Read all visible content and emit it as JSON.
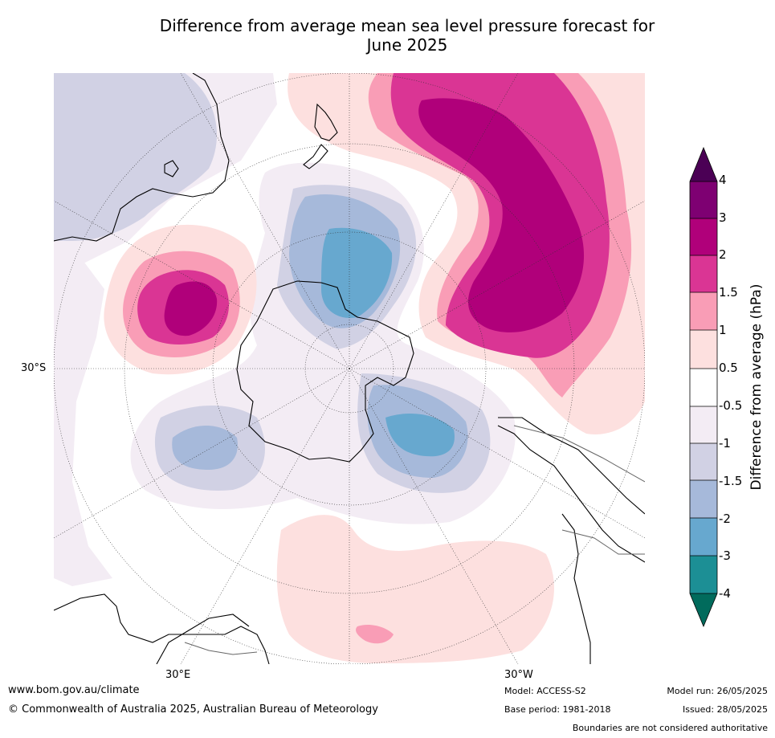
{
  "title_line1": "Difference from average mean sea level pressure forecast for",
  "title_line2": "June 2025",
  "map": {
    "lat_label": "30°S",
    "lon_labels": [
      "30°E",
      "30°W"
    ]
  },
  "colorbar": {
    "label": "Difference from average (hPa)",
    "ticks": [
      "4",
      "3",
      "2",
      "1.5",
      "1",
      "0.5",
      "-0.5",
      "-1",
      "-1.5",
      "-2",
      "-3",
      "-4"
    ],
    "colors": [
      "#4b0055",
      "#7e0072",
      "#b0007a",
      "#da3594",
      "#f99db6",
      "#fde0df",
      "#ffffff",
      "#f3ecf4",
      "#d1d1e4",
      "#a6b9da",
      "#67a8cf",
      "#1c8f95",
      "#016b5c"
    ]
  },
  "footer": {
    "url": "www.bom.gov.au/climate",
    "copyright": "© Commonwealth of Australia 2025, Australian Bureau of Meteorology",
    "model": "Model: ACCESS-S2",
    "base_period": "Base period: 1981-2018",
    "model_run": "Model run: 26/05/2025",
    "issued": "Issued: 28/05/2025",
    "disclaimer": "Boundaries are not considered authoritative"
  }
}
